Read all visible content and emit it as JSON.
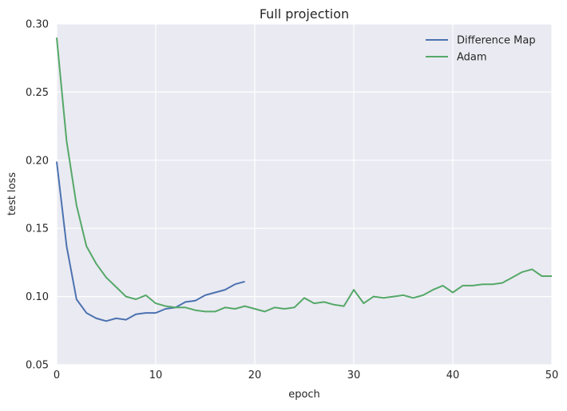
{
  "chart_data": {
    "type": "line",
    "title": "Full projection",
    "xlabel": "epoch",
    "ylabel": "test loss",
    "xlim": [
      0,
      50
    ],
    "ylim": [
      0.05,
      0.3
    ],
    "xticks": [
      0,
      10,
      20,
      30,
      40,
      50
    ],
    "yticks": [
      0.05,
      0.1,
      0.15,
      0.2,
      0.25,
      0.3
    ],
    "xtick_labels": [
      "0",
      "10",
      "20",
      "30",
      "40",
      "50"
    ],
    "ytick_labels": [
      "0.05",
      "0.10",
      "0.15",
      "0.20",
      "0.25",
      "0.30"
    ],
    "grid": true,
    "legend_position": "top-right",
    "background_color": "#EAEAF2",
    "grid_color": "#FFFFFF",
    "series": [
      {
        "name": "Difference Map",
        "color": "#4C72B0",
        "x": [
          0,
          1,
          2,
          3,
          4,
          5,
          6,
          7,
          8,
          9,
          10,
          11,
          12,
          13,
          14,
          15,
          16,
          17,
          18,
          19
        ],
        "values": [
          0.199,
          0.137,
          0.098,
          0.088,
          0.084,
          0.082,
          0.084,
          0.083,
          0.087,
          0.088,
          0.088,
          0.091,
          0.092,
          0.096,
          0.097,
          0.101,
          0.103,
          0.105,
          0.109,
          0.111
        ]
      },
      {
        "name": "Adam",
        "color": "#55A868",
        "x": [
          0,
          1,
          2,
          3,
          4,
          5,
          6,
          7,
          8,
          9,
          10,
          11,
          12,
          13,
          14,
          15,
          16,
          17,
          18,
          19,
          20,
          21,
          22,
          23,
          24,
          25,
          26,
          27,
          28,
          29,
          30,
          31,
          32,
          33,
          34,
          35,
          36,
          37,
          38,
          39,
          40,
          41,
          42,
          43,
          44,
          45,
          46,
          47,
          48,
          49,
          50
        ],
        "values": [
          0.29,
          0.214,
          0.167,
          0.137,
          0.124,
          0.114,
          0.107,
          0.1,
          0.098,
          0.101,
          0.095,
          0.093,
          0.092,
          0.092,
          0.09,
          0.089,
          0.089,
          0.092,
          0.091,
          0.093,
          0.091,
          0.089,
          0.092,
          0.091,
          0.092,
          0.099,
          0.095,
          0.096,
          0.094,
          0.093,
          0.105,
          0.095,
          0.1,
          0.099,
          0.1,
          0.101,
          0.099,
          0.101,
          0.105,
          0.108,
          0.103,
          0.108,
          0.108,
          0.109,
          0.109,
          0.11,
          0.114,
          0.118,
          0.12,
          0.115,
          0.115
        ]
      }
    ]
  }
}
